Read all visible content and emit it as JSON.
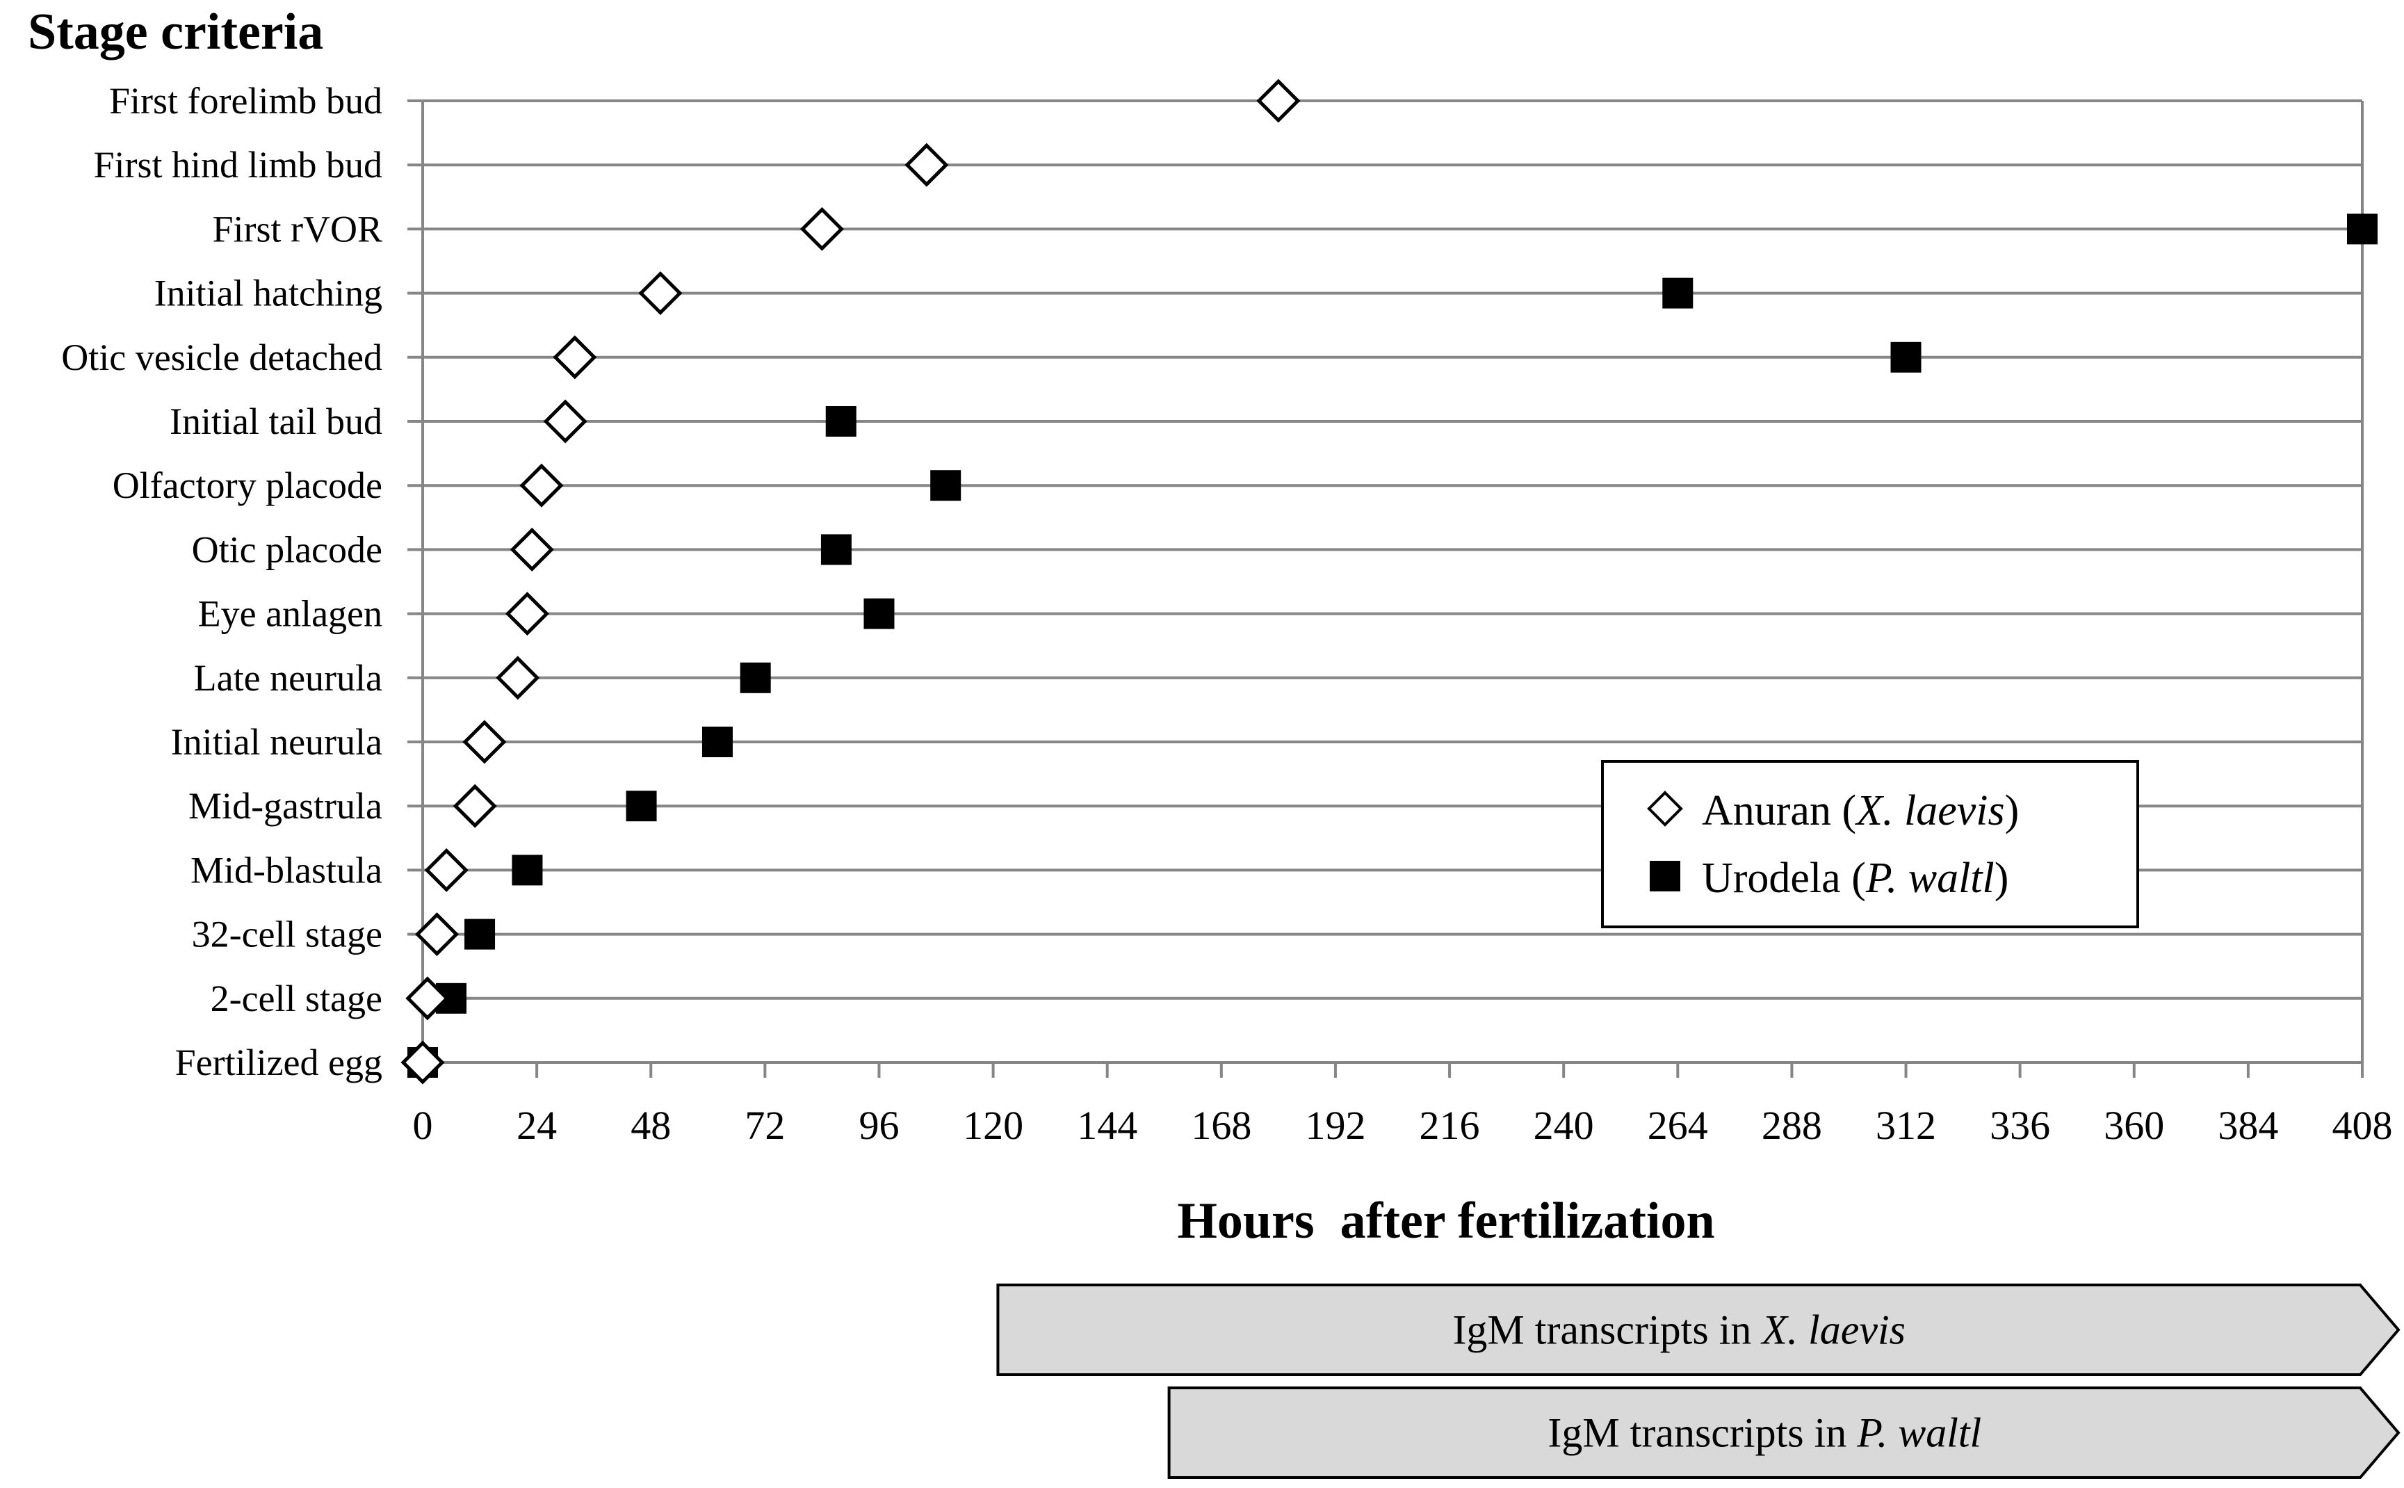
{
  "chart_data": {
    "type": "scatter",
    "title": "Stage criteria",
    "xlabel": "Hours  after fertilization",
    "ylabel": "",
    "xlim": [
      0,
      408
    ],
    "xticks": [
      0,
      24,
      48,
      72,
      96,
      120,
      144,
      168,
      192,
      216,
      240,
      264,
      288,
      312,
      336,
      360,
      384,
      408
    ],
    "grid": "horizontal",
    "legend_position": "bottom-right",
    "categories": [
      "Fertilized egg",
      "2-cell stage",
      "32-cell stage",
      "Mid-blastula",
      "Mid-gastrula",
      "Initial neurula",
      "Late neurula",
      "Eye anlagen",
      "Otic placode",
      "Olfactory placode",
      "Initial tail bud",
      "Otic vesicle detached",
      "Initial hatching",
      "First rVOR",
      "First hind limb bud",
      "First forelimb bud"
    ],
    "series": [
      {
        "name": "Anuran",
        "name_species": "X. laevis",
        "marker": "open-diamond",
        "color": "#000000",
        "values": [
          0,
          1,
          3,
          5,
          11,
          13,
          20,
          22,
          23,
          25,
          30,
          32,
          50,
          84,
          106,
          180
        ]
      },
      {
        "name": "Urodela",
        "name_species": "P. waltl",
        "marker": "filled-square",
        "color": "#000000",
        "values": [
          0,
          6,
          12,
          22,
          46,
          62,
          70,
          96,
          87,
          110,
          88,
          312,
          264,
          408,
          null,
          null
        ]
      }
    ],
    "annotations": [
      {
        "label": "IgM transcripts in ",
        "species": "X. laevis",
        "start": 121
      },
      {
        "label": "IgM transcripts in ",
        "species": "P. waltl",
        "start": 157
      }
    ]
  },
  "colors": {
    "grid": "#868686",
    "axis": "#868686",
    "arrow_fill": "#d9d9d9",
    "marker": "#000000"
  }
}
